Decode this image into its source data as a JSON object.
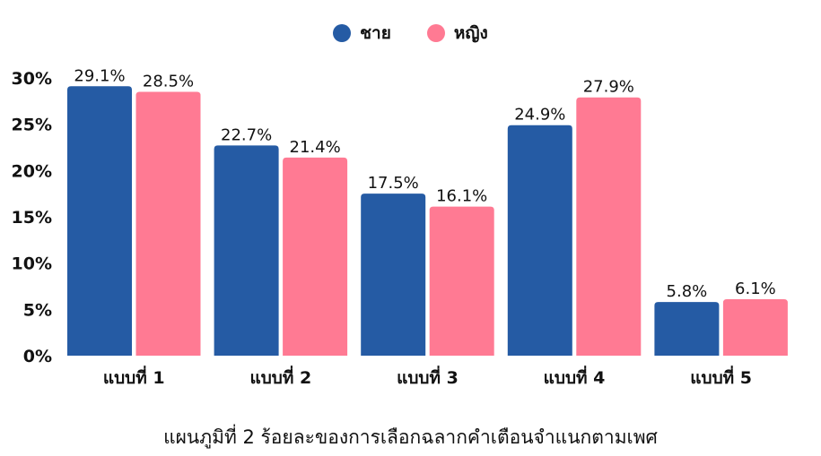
{
  "chart_data": {
    "type": "bar",
    "title": "",
    "caption": "แผนภูมิที่ 2 ร้อยละของการเลือกฉลากคำเตือนจำแนกตามเพศ",
    "categories": [
      "แบบที่ 1",
      "แบบที่ 2",
      "แบบที่ 3",
      "แบบที่ 4",
      "แบบที่ 5"
    ],
    "series": [
      {
        "name": "ชาย",
        "color": "#255BA4",
        "values": [
          29.1,
          22.7,
          17.5,
          24.9,
          5.8
        ],
        "labels": [
          "29.1%",
          "22.7%",
          "17.5%",
          "24.9%",
          "5.8%"
        ]
      },
      {
        "name": "หญิง",
        "color": "#FF7A93",
        "values": [
          28.5,
          21.4,
          16.1,
          27.9,
          6.1
        ],
        "labels": [
          "28.5%",
          "21.4%",
          "16.1%",
          "27.9%",
          "6.1%"
        ]
      }
    ],
    "ylim": [
      0,
      30
    ],
    "yticks": [
      "0%",
      "5%",
      "10%",
      "15%",
      "20%",
      "25%",
      "30%"
    ],
    "ytick_values": [
      0,
      5,
      10,
      15,
      20,
      25,
      30
    ],
    "grid": false,
    "legend": "top-center",
    "xlabel": "",
    "ylabel": ""
  }
}
